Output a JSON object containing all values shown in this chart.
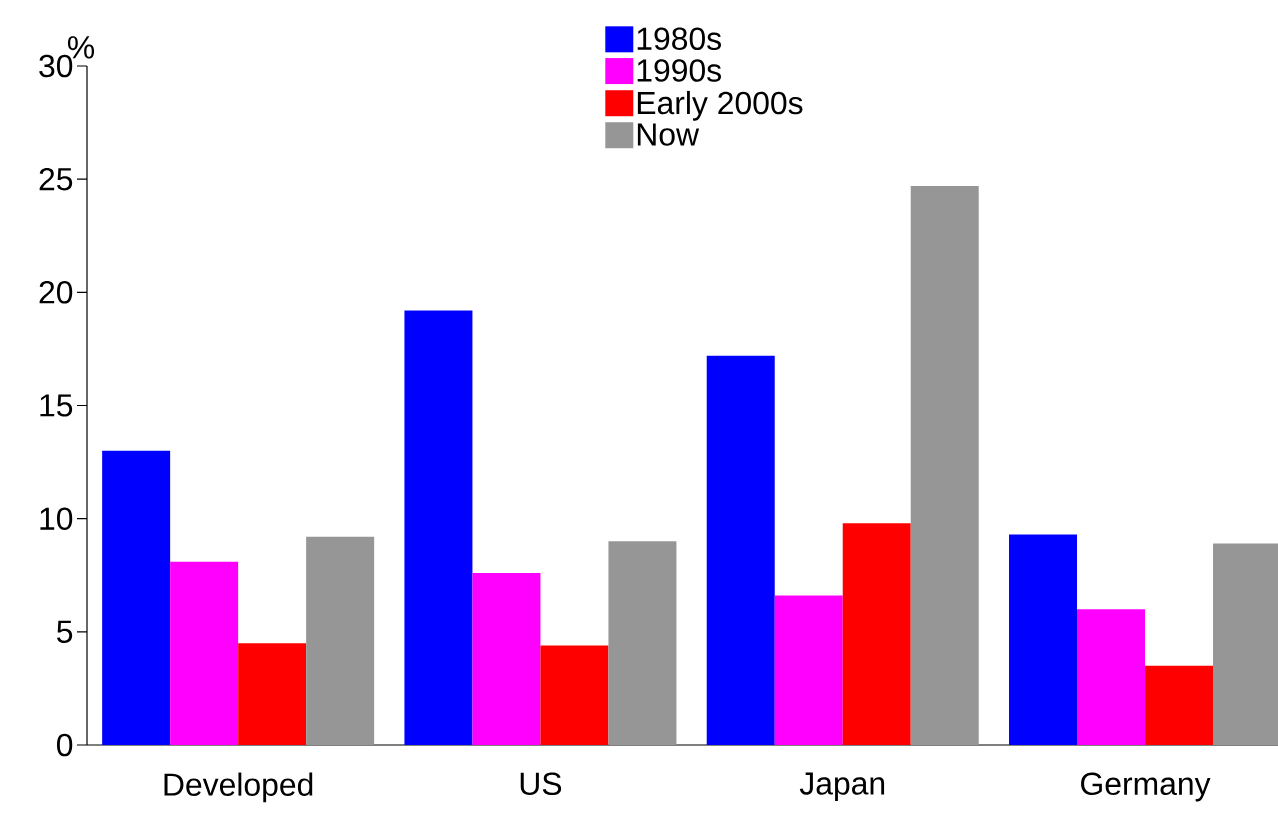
{
  "chart_data": {
    "type": "bar",
    "ylabel": "%",
    "categories": [
      "Developed",
      "US",
      "Japan",
      "Germany"
    ],
    "series": [
      {
        "name": "1980s",
        "color": "#0000ff",
        "values": [
          13.0,
          19.2,
          17.2,
          9.3
        ]
      },
      {
        "name": "1990s",
        "color": "#ff00ff",
        "values": [
          8.1,
          7.6,
          6.6,
          6.0
        ]
      },
      {
        "name": "Early 2000s",
        "color": "#ff0000",
        "values": [
          4.5,
          4.4,
          9.8,
          3.5
        ]
      },
      {
        "name": "Now",
        "color": "#969696",
        "values": [
          9.2,
          9.0,
          24.7,
          8.9
        ]
      }
    ],
    "ylim": [
      0,
      30
    ],
    "yticks": [
      0,
      5,
      10,
      15,
      20,
      25,
      30
    ],
    "legend": "top",
    "grid": false
  }
}
